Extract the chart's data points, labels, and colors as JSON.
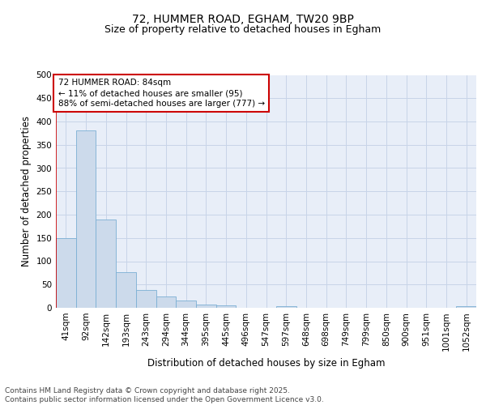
{
  "title1": "72, HUMMER ROAD, EGHAM, TW20 9BP",
  "title2": "Size of property relative to detached houses in Egham",
  "xlabel": "Distribution of detached houses by size in Egham",
  "ylabel": "Number of detached properties",
  "categories": [
    "41sqm",
    "92sqm",
    "142sqm",
    "193sqm",
    "243sqm",
    "294sqm",
    "344sqm",
    "395sqm",
    "445sqm",
    "496sqm",
    "547sqm",
    "597sqm",
    "648sqm",
    "698sqm",
    "749sqm",
    "799sqm",
    "850sqm",
    "900sqm",
    "951sqm",
    "1001sqm",
    "1052sqm"
  ],
  "values": [
    150,
    380,
    190,
    76,
    38,
    25,
    16,
    7,
    5,
    0,
    0,
    3,
    0,
    0,
    0,
    0,
    0,
    0,
    0,
    0,
    3
  ],
  "bar_color": "#ccdaeb",
  "bar_edge_color": "#7bafd4",
  "vline_color": "#cc0000",
  "annotation_text": "72 HUMMER ROAD: 84sqm\n← 11% of detached houses are smaller (95)\n88% of semi-detached houses are larger (777) →",
  "annotation_box_color": "white",
  "annotation_box_edge": "#cc0000",
  "ylim": [
    0,
    500
  ],
  "yticks": [
    0,
    50,
    100,
    150,
    200,
    250,
    300,
    350,
    400,
    450,
    500
  ],
  "grid_color": "#c8d4e8",
  "background_color": "#e8eef8",
  "footer_text": "Contains HM Land Registry data © Crown copyright and database right 2025.\nContains public sector information licensed under the Open Government Licence v3.0.",
  "title_fontsize": 10,
  "subtitle_fontsize": 9,
  "axis_label_fontsize": 8.5,
  "tick_fontsize": 7.5,
  "annotation_fontsize": 7.5,
  "footer_fontsize": 6.5
}
